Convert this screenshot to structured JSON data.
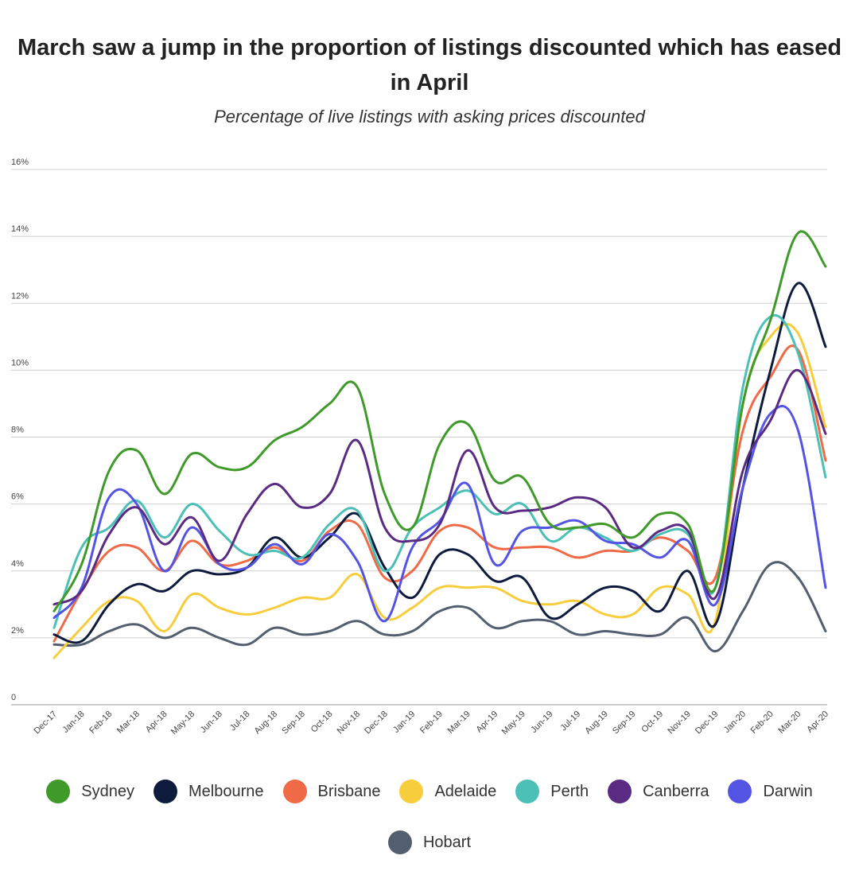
{
  "chart_data": {
    "type": "line",
    "title": "March saw a jump in the proportion of listings discounted which has eased in April",
    "subtitle": "Percentage of live listings with asking prices discounted",
    "categories": [
      "Dec-17",
      "Jan-18",
      "Feb-18",
      "Mar-18",
      "Apr-18",
      "May-18",
      "Jun-18",
      "Jul-18",
      "Aug-18",
      "Sep-18",
      "Oct-18",
      "Nov-18",
      "Dec-18",
      "Jan-19",
      "Feb-19",
      "Mar-19",
      "Apr-19",
      "May-19",
      "Jun-19",
      "Jul-19",
      "Aug-19",
      "Sep-19",
      "Oct-19",
      "Nov-19",
      "Dec-19",
      "Jan-20",
      "Feb-20",
      "Mar-20",
      "Apr-20"
    ],
    "yticks": [
      "0",
      "2%",
      "4%",
      "6%",
      "8%",
      "10%",
      "12%",
      "14%",
      "16%"
    ],
    "ylim": [
      0,
      16
    ],
    "grid": true,
    "legend_position": "bottom",
    "series": [
      {
        "name": "Sydney",
        "color": "#3f9a2a",
        "values": [
          2.8,
          4.2,
          7.0,
          7.6,
          6.3,
          7.5,
          7.1,
          7.1,
          7.9,
          8.3,
          9.0,
          9.5,
          6.3,
          5.3,
          7.8,
          8.4,
          6.7,
          6.8,
          5.4,
          5.3,
          5.4,
          5.0,
          5.7,
          5.4,
          3.5,
          9.0,
          11.5,
          14.1,
          13.1
        ]
      },
      {
        "name": "Melbourne",
        "color": "#0e1b3d",
        "values": [
          2.1,
          1.9,
          3.0,
          3.6,
          3.4,
          4.0,
          3.9,
          4.1,
          5.0,
          4.4,
          5.0,
          5.7,
          4.1,
          3.2,
          4.5,
          4.5,
          3.7,
          3.8,
          2.6,
          3.0,
          3.5,
          3.4,
          2.8,
          4.0,
          2.4,
          6.5,
          10.0,
          12.6,
          10.7
        ]
      },
      {
        "name": "Brisbane",
        "color": "#ef6a47",
        "values": [
          1.9,
          3.4,
          4.6,
          4.7,
          4.0,
          4.9,
          4.2,
          4.3,
          4.7,
          4.3,
          5.2,
          5.4,
          3.8,
          4.0,
          5.2,
          5.3,
          4.7,
          4.7,
          4.7,
          4.4,
          4.6,
          4.6,
          5.0,
          4.6,
          3.8,
          8.2,
          9.8,
          10.6,
          7.3
        ]
      },
      {
        "name": "Adelaide",
        "color": "#f7cd3c",
        "values": [
          1.4,
          2.3,
          3.1,
          3.1,
          2.2,
          3.3,
          2.9,
          2.7,
          2.9,
          3.2,
          3.2,
          3.9,
          2.6,
          2.9,
          3.5,
          3.5,
          3.5,
          3.1,
          3.0,
          3.1,
          2.7,
          2.7,
          3.5,
          3.3,
          2.5,
          9.0,
          11.0,
          11.1,
          8.3
        ]
      },
      {
        "name": "Perth",
        "color": "#4cbfb7",
        "values": [
          2.3,
          4.7,
          5.3,
          6.1,
          5.0,
          6.0,
          5.2,
          4.5,
          4.6,
          4.4,
          5.4,
          5.8,
          4.0,
          5.3,
          5.9,
          6.4,
          5.7,
          6.0,
          4.9,
          5.3,
          5.0,
          4.6,
          5.1,
          5.1,
          3.5,
          9.5,
          11.6,
          10.5,
          6.8
        ]
      },
      {
        "name": "Canberra",
        "color": "#5a2b82",
        "values": [
          3.0,
          3.4,
          5.1,
          5.9,
          4.8,
          5.6,
          4.3,
          5.7,
          6.6,
          5.9,
          6.3,
          7.9,
          5.3,
          4.9,
          5.4,
          7.6,
          5.9,
          5.8,
          5.9,
          6.2,
          5.9,
          4.7,
          5.2,
          5.2,
          3.2,
          7.0,
          8.5,
          10.0,
          8.1
        ]
      },
      {
        "name": "Darwin",
        "color": "#5454e4",
        "values": [
          2.6,
          3.5,
          6.2,
          6.0,
          4.0,
          5.3,
          4.2,
          4.1,
          4.8,
          4.2,
          5.1,
          4.3,
          2.5,
          4.7,
          5.5,
          6.6,
          4.2,
          5.2,
          5.3,
          5.5,
          4.9,
          4.8,
          4.4,
          4.9,
          3.0,
          6.5,
          8.7,
          8.2,
          3.5
        ]
      },
      {
        "name": "Hobart",
        "color": "#535e6e",
        "values": [
          1.8,
          1.8,
          2.2,
          2.4,
          2.0,
          2.3,
          2.0,
          1.8,
          2.3,
          2.1,
          2.2,
          2.5,
          2.1,
          2.2,
          2.8,
          2.9,
          2.3,
          2.5,
          2.5,
          2.1,
          2.2,
          2.1,
          2.1,
          2.6,
          1.6,
          2.8,
          4.2,
          3.8,
          2.2
        ]
      }
    ]
  }
}
